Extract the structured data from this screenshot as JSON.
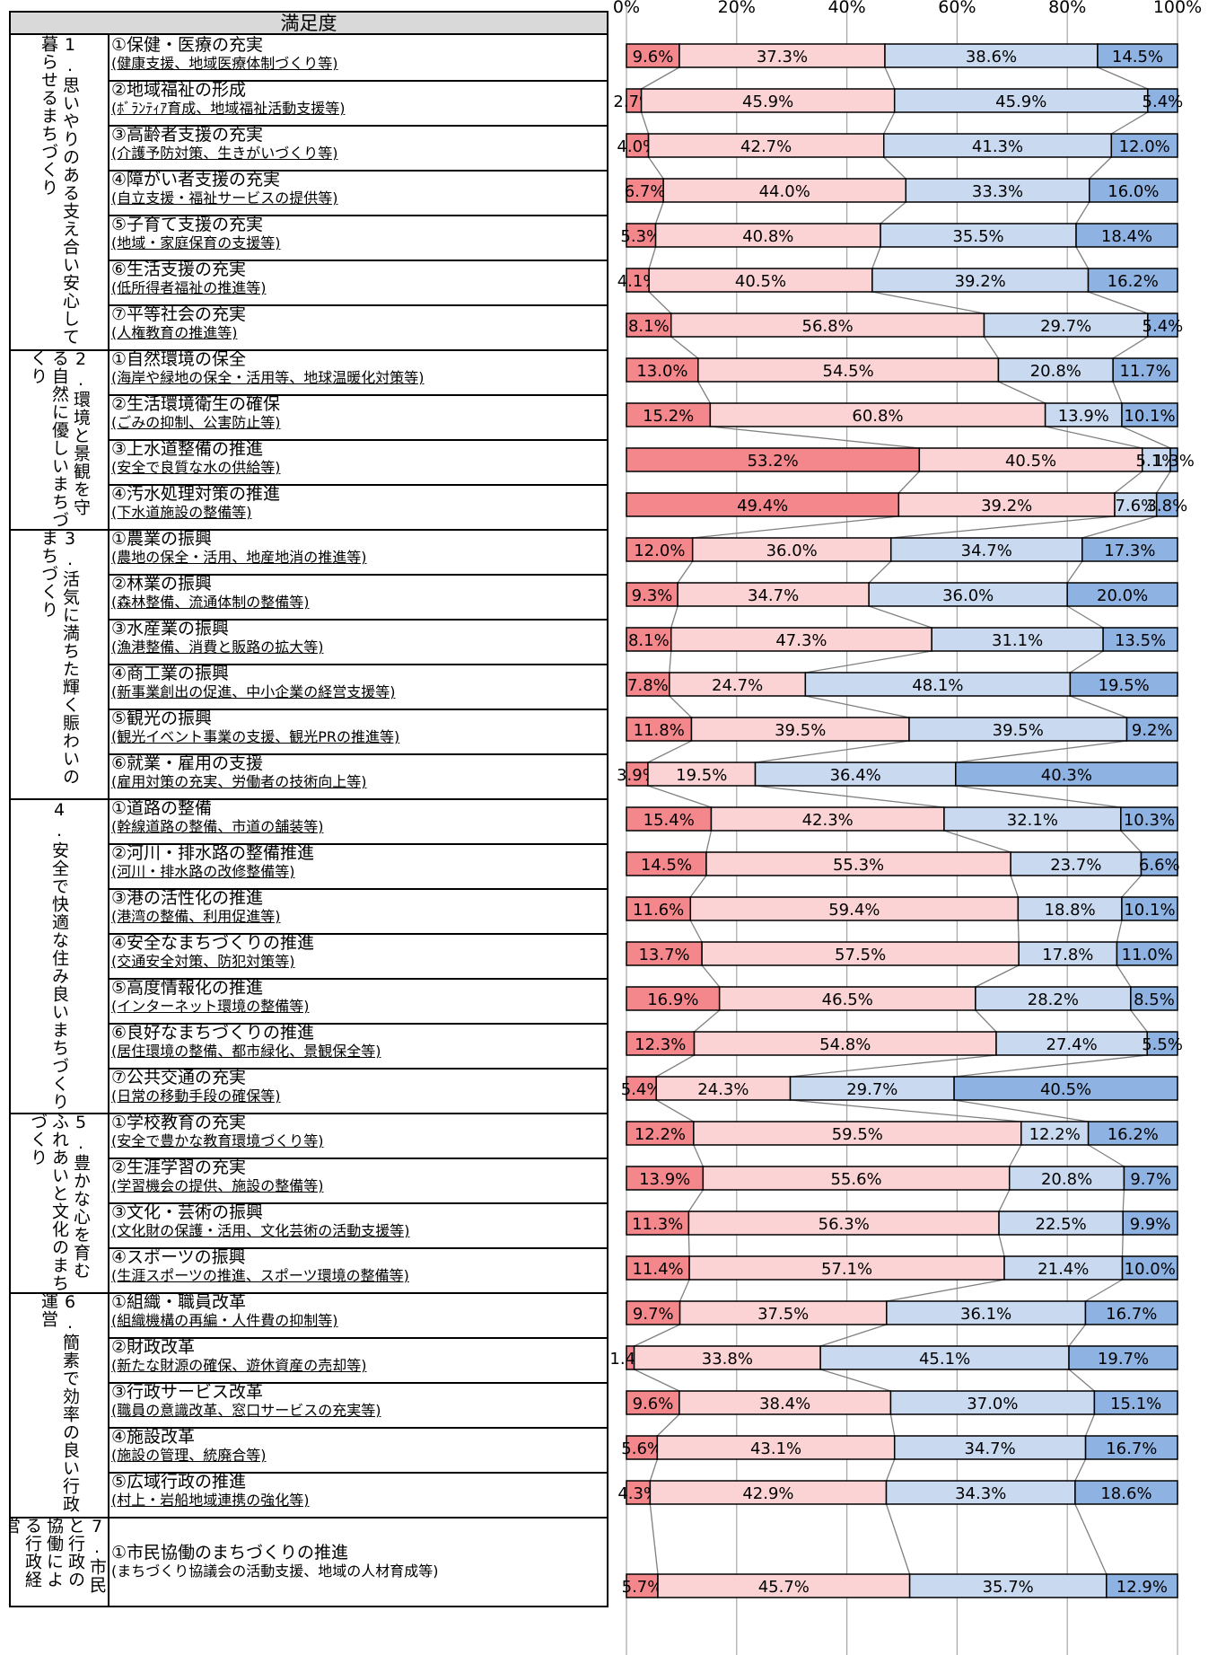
{
  "header": "満足度",
  "chart_data": {
    "type": "bar",
    "orientation": "horizontal",
    "stacked": "percent",
    "xlim": [
      0,
      100
    ],
    "x_ticks": [
      "0%",
      "20%",
      "40%",
      "60%",
      "80%",
      "100%"
    ],
    "grid": true,
    "segment_colors": [
      "#f4878c",
      "#fbd3d5",
      "#c9daf0",
      "#8eb2e2"
    ],
    "categories": [
      {
        "label": "1.思いやりのある支え合い安心して暮らせるまちづくり",
        "items": [
          {
            "name": "①保健・医療の充実",
            "desc": "(健康支援、地域医療体制づくり等)",
            "values": [
              9.6,
              37.3,
              38.6,
              14.5
            ],
            "labels": [
              "9.6%",
              "37.3%",
              "38.6%",
              "14.5%"
            ]
          },
          {
            "name": "②地域福祉の形成",
            "desc": "(ﾎﾞﾗﾝﾃｨｱ育成、地域福祉活動支援等)",
            "values": [
              2.7,
              45.9,
              45.9,
              5.4
            ],
            "labels": [
              "2.7%",
              "45.9%",
              "45.9%",
              "5.4%"
            ]
          },
          {
            "name": "③高齢者支援の充実",
            "desc": "(介護予防対策、生きがいづくり等)",
            "values": [
              4.0,
              42.7,
              41.3,
              12.0
            ],
            "labels": [
              "4.0%",
              "42.7%",
              "41.3%",
              "12.0%"
            ]
          },
          {
            "name": "④障がい者支援の充実",
            "desc": "(自立支援・福祉サービスの提供等)",
            "values": [
              6.7,
              44.0,
              33.3,
              16.0
            ],
            "labels": [
              "6.7%",
              "44.0%",
              "33.3%",
              "16.0%"
            ]
          },
          {
            "name": "⑤子育て支援の充実",
            "desc": "(地域・家庭保育の支援等)",
            "values": [
              5.3,
              40.8,
              35.5,
              18.4
            ],
            "labels": [
              "5.3%",
              "40.8%",
              "35.5%",
              "18.4%"
            ]
          },
          {
            "name": "⑥生活支援の充実",
            "desc": "(低所得者福祉の推進等)",
            "values": [
              4.1,
              40.5,
              39.2,
              16.2
            ],
            "labels": [
              "4.1%",
              "40.5%",
              "39.2%",
              "16.2%"
            ]
          },
          {
            "name": "⑦平等社会の充実",
            "desc": "(人権教育の推進等)",
            "values": [
              8.1,
              56.8,
              29.7,
              5.4
            ],
            "labels": [
              "8.1%",
              "56.8%",
              "29.7%",
              "5.4%"
            ]
          }
        ]
      },
      {
        "label": "2.環境と景観を守る自然に優しいまちづくり",
        "items": [
          {
            "name": "①自然環境の保全",
            "desc": "(海岸や緑地の保全・活用等、地球温暖化対策等)",
            "values": [
              13.0,
              54.5,
              20.8,
              11.7
            ],
            "labels": [
              "13.0%",
              "54.5%",
              "20.8%",
              "11.7%"
            ]
          },
          {
            "name": "②生活環境衛生の確保",
            "desc": "(ごみの抑制、公害防止等)",
            "values": [
              15.2,
              60.8,
              13.9,
              10.1
            ],
            "labels": [
              "15.2%",
              "60.8%",
              "13.9%",
              "10.1%"
            ]
          },
          {
            "name": "③上水道整備の推進",
            "desc": "(安全で良質な水の供給等)",
            "values": [
              53.2,
              40.5,
              5.1,
              1.3
            ],
            "labels": [
              "53.2%",
              "40.5%",
              "5.1%",
              "1.3%"
            ]
          },
          {
            "name": "④汚水処理対策の推進",
            "desc": "(下水道施設の整備等)",
            "values": [
              49.4,
              39.2,
              7.6,
              3.8
            ],
            "labels": [
              "49.4%",
              "39.2%",
              "7.6%",
              "3.8%"
            ]
          }
        ]
      },
      {
        "label": "3.活気に満ちた輝く賑わいのまちづくり",
        "items": [
          {
            "name": "①農業の振興",
            "desc": "(農地の保全・活用、地産地消の推進等)",
            "values": [
              12.0,
              36.0,
              34.7,
              17.3
            ],
            "labels": [
              "12.0%",
              "36.0%",
              "34.7%",
              "17.3%"
            ]
          },
          {
            "name": "②林業の振興",
            "desc": "(森林整備、流通体制の整備等)",
            "values": [
              9.3,
              34.7,
              36.0,
              20.0
            ],
            "labels": [
              "9.3%",
              "34.7%",
              "36.0%",
              "20.0%"
            ]
          },
          {
            "name": "③水産業の振興",
            "desc": "(漁港整備、消費と販路の拡大等)",
            "values": [
              8.1,
              47.3,
              31.1,
              13.5
            ],
            "labels": [
              "8.1%",
              "47.3%",
              "31.1%",
              "13.5%"
            ]
          },
          {
            "name": "④商工業の振興",
            "desc": "(新事業創出の促進、中小企業の経営支援等)",
            "values": [
              7.8,
              24.7,
              48.1,
              19.5
            ],
            "labels": [
              "7.8%",
              "24.7%",
              "48.1%",
              "19.5%"
            ]
          },
          {
            "name": "⑤観光の振興",
            "desc": "(観光イベント事業の支援、観光PRの推進等)",
            "values": [
              11.8,
              39.5,
              39.5,
              9.2
            ],
            "labels": [
              "11.8%",
              "39.5%",
              "39.5%",
              "9.2%"
            ]
          },
          {
            "name": "⑥就業・雇用の支援",
            "desc": "(雇用対策の充実、労働者の技術向上等)",
            "values": [
              3.9,
              19.5,
              36.4,
              40.3
            ],
            "labels": [
              "3.9%",
              "19.5%",
              "36.4%",
              "40.3%"
            ]
          }
        ]
      },
      {
        "label": "4.安全で快適な住み良いまちづくり",
        "items": [
          {
            "name": "①道路の整備",
            "desc": "(幹線道路の整備、市道の舗装等)",
            "values": [
              15.4,
              42.3,
              32.1,
              10.3
            ],
            "labels": [
              "15.4%",
              "42.3%",
              "32.1%",
              "10.3%"
            ]
          },
          {
            "name": "②河川・排水路の整備推進",
            "desc": "(河川・排水路の改修整備等)",
            "values": [
              14.5,
              55.3,
              23.7,
              6.6
            ],
            "labels": [
              "14.5%",
              "55.3%",
              "23.7%",
              "6.6%"
            ]
          },
          {
            "name": "③港の活性化の推進",
            "desc": "(港湾の整備、利用促進等)",
            "values": [
              11.6,
              59.4,
              18.8,
              10.1
            ],
            "labels": [
              "11.6%",
              "59.4%",
              "18.8%",
              "10.1%"
            ]
          },
          {
            "name": "④安全なまちづくりの推進",
            "desc": "(交通安全対策、防犯対策等)",
            "values": [
              13.7,
              57.5,
              17.8,
              11.0
            ],
            "labels": [
              "13.7%",
              "57.5%",
              "17.8%",
              "11.0%"
            ]
          },
          {
            "name": "⑤高度情報化の推進",
            "desc": "(インターネット環境の整備等)",
            "values": [
              16.9,
              46.5,
              28.2,
              8.5
            ],
            "labels": [
              "16.9%",
              "46.5%",
              "28.2%",
              "8.5%"
            ]
          },
          {
            "name": "⑥良好なまちづくりの推進",
            "desc": "(居住環境の整備、都市緑化、景観保全等)",
            "values": [
              12.3,
              54.8,
              27.4,
              5.5
            ],
            "labels": [
              "12.3%",
              "54.8%",
              "27.4%",
              "5.5%"
            ]
          },
          {
            "name": "⑦公共交通の充実",
            "desc": "(日常の移動手段の確保等)",
            "values": [
              5.4,
              24.3,
              29.7,
              40.5
            ],
            "labels": [
              "5.4%",
              "24.3%",
              "29.7%",
              "40.5%"
            ]
          }
        ]
      },
      {
        "label": "5.豊かな心を育むふれあいと文化のまちづくり",
        "items": [
          {
            "name": "①学校教育の充実",
            "desc": "(安全で豊かな教育環境づくり等)",
            "values": [
              12.2,
              59.5,
              12.2,
              16.2
            ],
            "labels": [
              "12.2%",
              "59.5%",
              "12.2%",
              "16.2%"
            ]
          },
          {
            "name": "②生涯学習の充実",
            "desc": "(学習機会の提供、施設の整備等)",
            "values": [
              13.9,
              55.6,
              20.8,
              9.7
            ],
            "labels": [
              "13.9%",
              "55.6%",
              "20.8%",
              "9.7%"
            ]
          },
          {
            "name": "③文化・芸術の振興",
            "desc": "(文化財の保護・活用、文化芸術の活動支援等)",
            "values": [
              11.3,
              56.3,
              22.5,
              9.9
            ],
            "labels": [
              "11.3%",
              "56.3%",
              "22.5%",
              "9.9%"
            ]
          },
          {
            "name": "④スポーツの振興",
            "desc": "(生涯スポーツの推進、スポーツ環境の整備等)",
            "values": [
              11.4,
              57.1,
              21.4,
              10.0
            ],
            "labels": [
              "11.4%",
              "57.1%",
              "21.4%",
              "10.0%"
            ]
          }
        ]
      },
      {
        "label": "6.簡素で効率の良い行政運営",
        "items": [
          {
            "name": "①組織・職員改革",
            "desc": "(組織機構の再編・人件費の抑制等)",
            "values": [
              9.7,
              37.5,
              36.1,
              16.7
            ],
            "labels": [
              "9.7%",
              "37.5%",
              "36.1%",
              "16.7%"
            ]
          },
          {
            "name": "②財政改革",
            "desc": "(新たな財源の確保、遊休資産の売却等)",
            "values": [
              1.4,
              33.8,
              45.1,
              19.7
            ],
            "labels": [
              "1.4%",
              "33.8%",
              "45.1%",
              "19.7%"
            ]
          },
          {
            "name": "③行政サービス改革",
            "desc": "(職員の意識改革、窓口サービスの充実等)",
            "values": [
              9.6,
              38.4,
              37.0,
              15.1
            ],
            "labels": [
              "9.6%",
              "38.4%",
              "37.0%",
              "15.1%"
            ]
          },
          {
            "name": "④施設改革",
            "desc": "(施設の管理、統廃合等)",
            "values": [
              5.6,
              43.1,
              34.7,
              16.7
            ],
            "labels": [
              "5.6%",
              "43.1%",
              "34.7%",
              "16.7%"
            ]
          },
          {
            "name": "⑤広域行政の推進",
            "desc": "(村上・岩船地域連携の強化等)",
            "values": [
              4.3,
              42.9,
              34.3,
              18.6
            ],
            "labels": [
              "4.3%",
              "42.9%",
              "34.3%",
              "18.6%"
            ]
          }
        ]
      },
      {
        "label": "7.市民と行政の協働による行政経営",
        "items": [
          {
            "name": "①市民協働のまちづくりの推進",
            "desc": "(まちづくり協議会の活動支援、地域の人材育成等)",
            "values": [
              5.7,
              45.7,
              35.7,
              12.9
            ],
            "labels": [
              "5.7%",
              "45.7%",
              "35.7%",
              "12.9%"
            ]
          }
        ]
      }
    ]
  }
}
